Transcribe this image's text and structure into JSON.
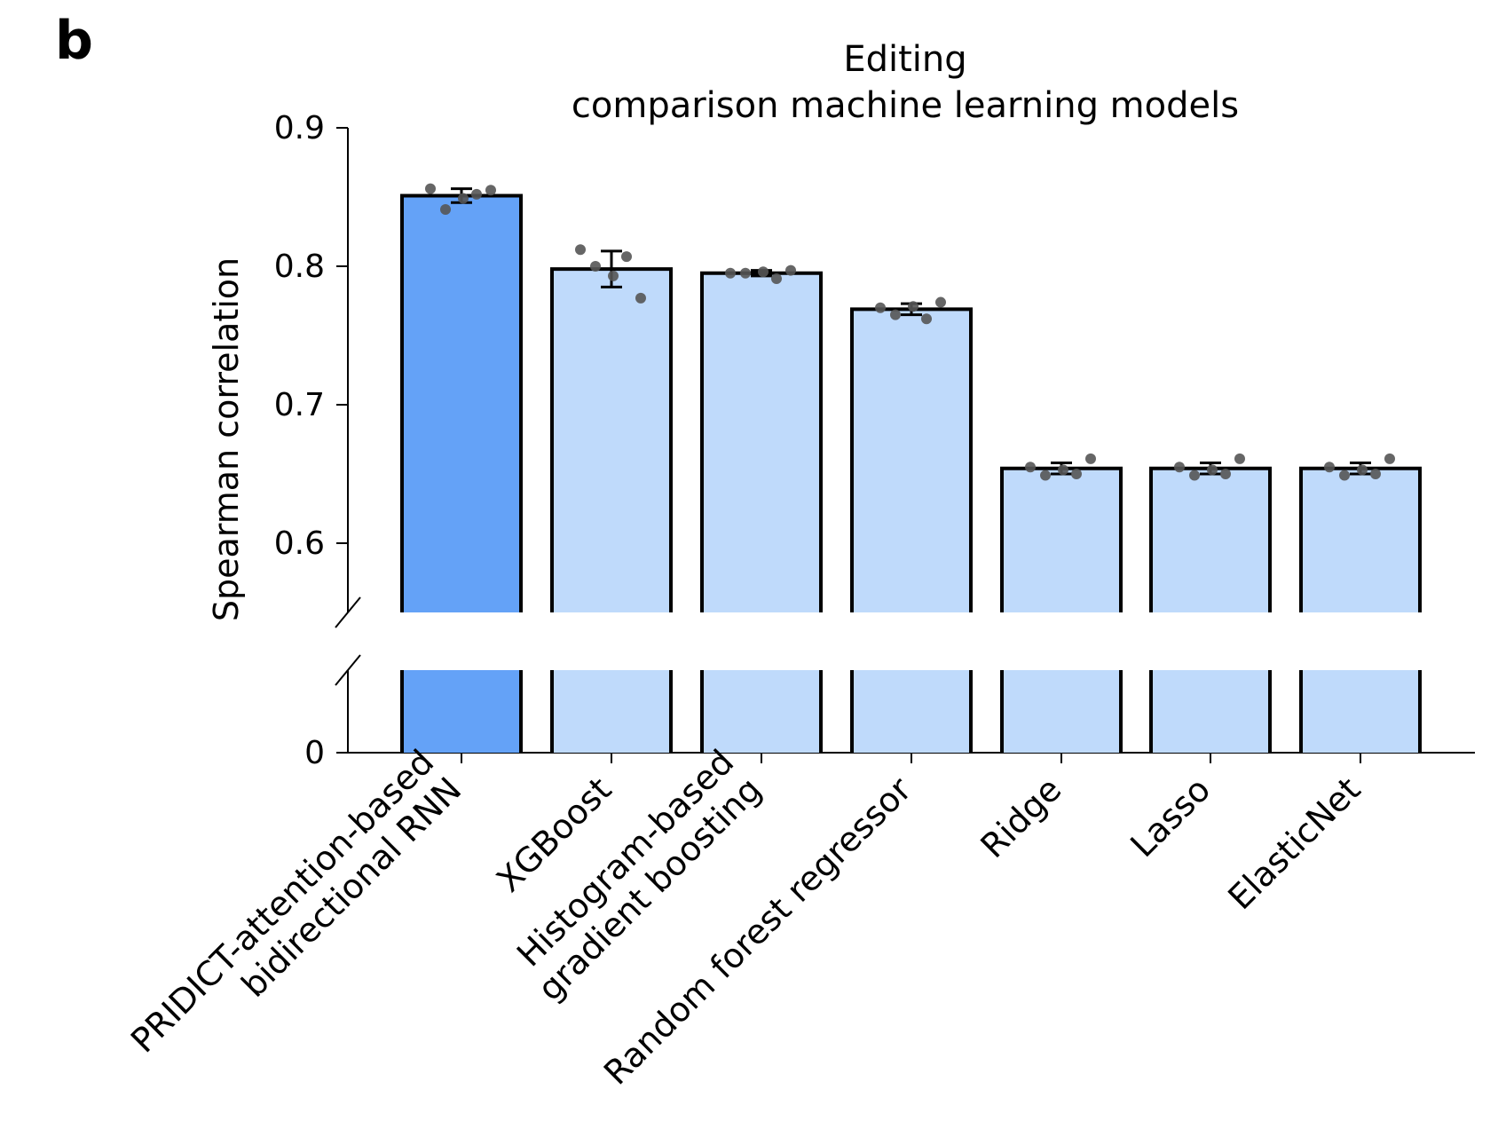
{
  "panel_label": "b",
  "chart_data": {
    "type": "bar",
    "title": "Editing\ncomparison machine learning models",
    "title_lines": [
      "Editing",
      "comparison machine learning models"
    ],
    "ylabel": "Spearman correlation",
    "xlabel": "",
    "ylim_upper": [
      0.55,
      0.9
    ],
    "ylim_lower": [
      0,
      0.05
    ],
    "axis_break": true,
    "yticks": [
      0,
      0.6,
      0.7,
      0.8,
      0.9
    ],
    "ytick_labels": [
      "0",
      "0.6",
      "0.7",
      "0.8",
      "0.9"
    ],
    "categories": [
      "PRIDICT-attention-based\nbidirectional RNN",
      "XGBoost",
      "Histogram-based\ngradient boosting",
      "Random forest regressor",
      "Ridge",
      "Lasso",
      "ElasticNet"
    ],
    "values": [
      0.851,
      0.798,
      0.795,
      0.769,
      0.654,
      0.654,
      0.654
    ],
    "errors": [
      0.005,
      0.013,
      0.002,
      0.004,
      0.004,
      0.004,
      0.004
    ],
    "points": [
      [
        0.856,
        0.841,
        0.849,
        0.852,
        0.855
      ],
      [
        0.812,
        0.8,
        0.793,
        0.807,
        0.777
      ],
      [
        0.795,
        0.795,
        0.796,
        0.791,
        0.797
      ],
      [
        0.77,
        0.765,
        0.771,
        0.762,
        0.774
      ],
      [
        0.655,
        0.649,
        0.653,
        0.65,
        0.661
      ],
      [
        0.655,
        0.649,
        0.653,
        0.65,
        0.661
      ],
      [
        0.655,
        0.649,
        0.653,
        0.65,
        0.661
      ]
    ],
    "colors": {
      "highlight_bar": "#64A2F7",
      "bar": "#BFDAFB",
      "edge": "#000000",
      "point": "#555555"
    },
    "grid": false
  }
}
